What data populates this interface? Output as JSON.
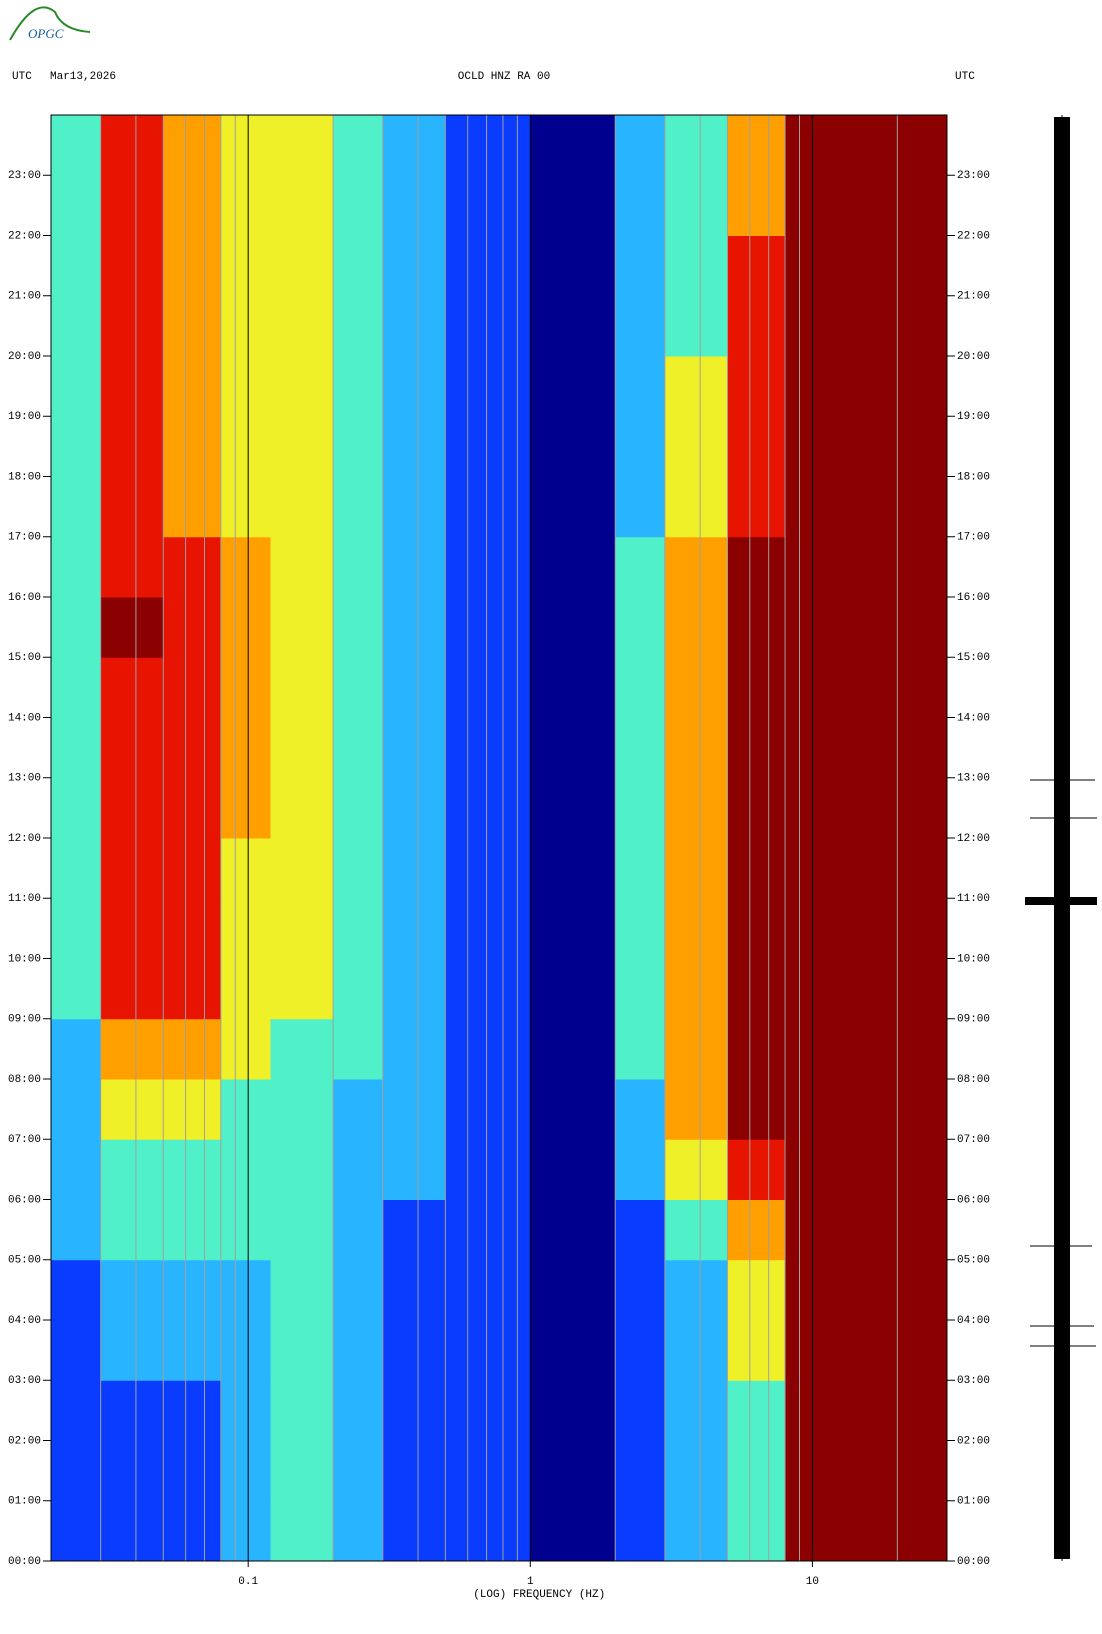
{
  "logo": "OPGC",
  "chart_data": {
    "type": "heatmap",
    "title": "OCLD HNZ RA 00",
    "left_label": "UTC",
    "date": "Mar13,2026",
    "right_label": "UTC",
    "x_label": "(LOG) FREQUENCY (HZ)",
    "x_log": true,
    "xlim": [
      0.02,
      30
    ],
    "xticks": [
      0.1,
      1,
      10
    ],
    "xgrid_minor": [
      0.03,
      0.04,
      0.05,
      0.06,
      0.07,
      0.08,
      0.09,
      0.2,
      0.3,
      0.4,
      0.5,
      0.6,
      0.7,
      0.8,
      0.9,
      2,
      3,
      4,
      5,
      6,
      7,
      8,
      9,
      20
    ],
    "ylim": [
      0,
      24
    ],
    "yticks": [
      {
        "value": 0,
        "label": "00:00"
      },
      {
        "value": 1,
        "label": "01:00"
      },
      {
        "value": 2,
        "label": "02:00"
      },
      {
        "value": 3,
        "label": "03:00"
      },
      {
        "value": 4,
        "label": "04:00"
      },
      {
        "value": 5,
        "label": "05:00"
      },
      {
        "value": 6,
        "label": "06:00"
      },
      {
        "value": 7,
        "label": "07:00"
      },
      {
        "value": 8,
        "label": "08:00"
      },
      {
        "value": 9,
        "label": "09:00"
      },
      {
        "value": 10,
        "label": "10:00"
      },
      {
        "value": 11,
        "label": "11:00"
      },
      {
        "value": 12,
        "label": "12:00"
      },
      {
        "value": 13,
        "label": "13:00"
      },
      {
        "value": 14,
        "label": "14:00"
      },
      {
        "value": 15,
        "label": "15:00"
      },
      {
        "value": 16,
        "label": "16:00"
      },
      {
        "value": 17,
        "label": "17:00"
      },
      {
        "value": 18,
        "label": "18:00"
      },
      {
        "value": 19,
        "label": "19:00"
      },
      {
        "value": 20,
        "label": "20:00"
      },
      {
        "value": 21,
        "label": "21:00"
      },
      {
        "value": 22,
        "label": "22:00"
      },
      {
        "value": 23,
        "label": "23:00"
      }
    ],
    "colors": [
      "#00008f",
      "#0a3cff",
      "#28b4ff",
      "#50f0c8",
      "#f0f028",
      "#ffa000",
      "#e61400",
      "#8b0000"
    ],
    "x_bins": [
      0.02,
      0.03,
      0.05,
      0.08,
      0.12,
      0.2,
      0.3,
      0.5,
      1,
      2,
      3,
      5,
      8,
      30
    ],
    "y_bins": [
      0,
      1,
      2,
      3,
      4,
      5,
      6,
      7,
      8,
      9,
      10,
      11,
      12,
      13,
      14,
      15,
      16,
      17,
      18,
      19,
      20,
      21,
      22,
      23,
      24
    ],
    "values": [
      [
        1,
        1,
        1,
        2,
        3,
        2,
        1,
        1,
        0,
        1,
        2,
        3,
        7
      ],
      [
        1,
        1,
        1,
        2,
        3,
        2,
        1,
        1,
        0,
        1,
        2,
        3,
        7
      ],
      [
        1,
        1,
        1,
        2,
        3,
        2,
        1,
        1,
        0,
        1,
        2,
        3,
        7
      ],
      [
        1,
        2,
        2,
        2,
        3,
        2,
        1,
        1,
        0,
        1,
        2,
        4,
        7
      ],
      [
        1,
        2,
        2,
        2,
        3,
        2,
        1,
        1,
        0,
        1,
        2,
        4,
        7
      ],
      [
        2,
        3,
        3,
        3,
        3,
        2,
        1,
        1,
        0,
        1,
        3,
        5,
        7
      ],
      [
        2,
        3,
        3,
        3,
        3,
        2,
        2,
        1,
        0,
        2,
        4,
        6,
        7
      ],
      [
        2,
        4,
        4,
        3,
        3,
        2,
        2,
        1,
        0,
        2,
        5,
        7,
        7
      ],
      [
        2,
        5,
        5,
        4,
        3,
        3,
        2,
        1,
        0,
        3,
        5,
        7,
        7
      ],
      [
        3,
        6,
        6,
        4,
        4,
        3,
        2,
        1,
        0,
        3,
        5,
        7,
        7
      ],
      [
        3,
        6,
        6,
        4,
        4,
        3,
        2,
        1,
        0,
        3,
        5,
        7,
        7
      ],
      [
        3,
        6,
        6,
        4,
        4,
        3,
        2,
        1,
        0,
        3,
        5,
        7,
        7
      ],
      [
        3,
        6,
        6,
        5,
        4,
        3,
        2,
        1,
        0,
        3,
        5,
        7,
        7
      ],
      [
        3,
        6,
        6,
        5,
        4,
        3,
        2,
        1,
        0,
        3,
        5,
        7,
        7
      ],
      [
        3,
        6,
        6,
        5,
        4,
        3,
        2,
        1,
        0,
        3,
        5,
        7,
        7
      ],
      [
        3,
        7,
        6,
        5,
        4,
        3,
        2,
        1,
        0,
        3,
        5,
        7,
        7
      ],
      [
        3,
        6,
        6,
        5,
        4,
        3,
        2,
        1,
        0,
        3,
        5,
        7,
        7
      ],
      [
        3,
        6,
        5,
        4,
        4,
        3,
        2,
        1,
        0,
        2,
        4,
        6,
        7
      ],
      [
        3,
        6,
        5,
        4,
        4,
        3,
        2,
        1,
        0,
        2,
        4,
        6,
        7
      ],
      [
        3,
        6,
        5,
        4,
        4,
        3,
        2,
        1,
        0,
        2,
        4,
        6,
        7
      ],
      [
        3,
        6,
        5,
        4,
        4,
        3,
        2,
        1,
        0,
        2,
        3,
        6,
        7
      ],
      [
        3,
        6,
        5,
        4,
        4,
        3,
        2,
        1,
        0,
        2,
        3,
        6,
        7
      ],
      [
        3,
        6,
        5,
        4,
        4,
        3,
        2,
        1,
        0,
        2,
        3,
        5,
        7
      ],
      [
        3,
        6,
        5,
        4,
        4,
        3,
        2,
        1,
        0,
        2,
        3,
        5,
        7
      ]
    ]
  }
}
